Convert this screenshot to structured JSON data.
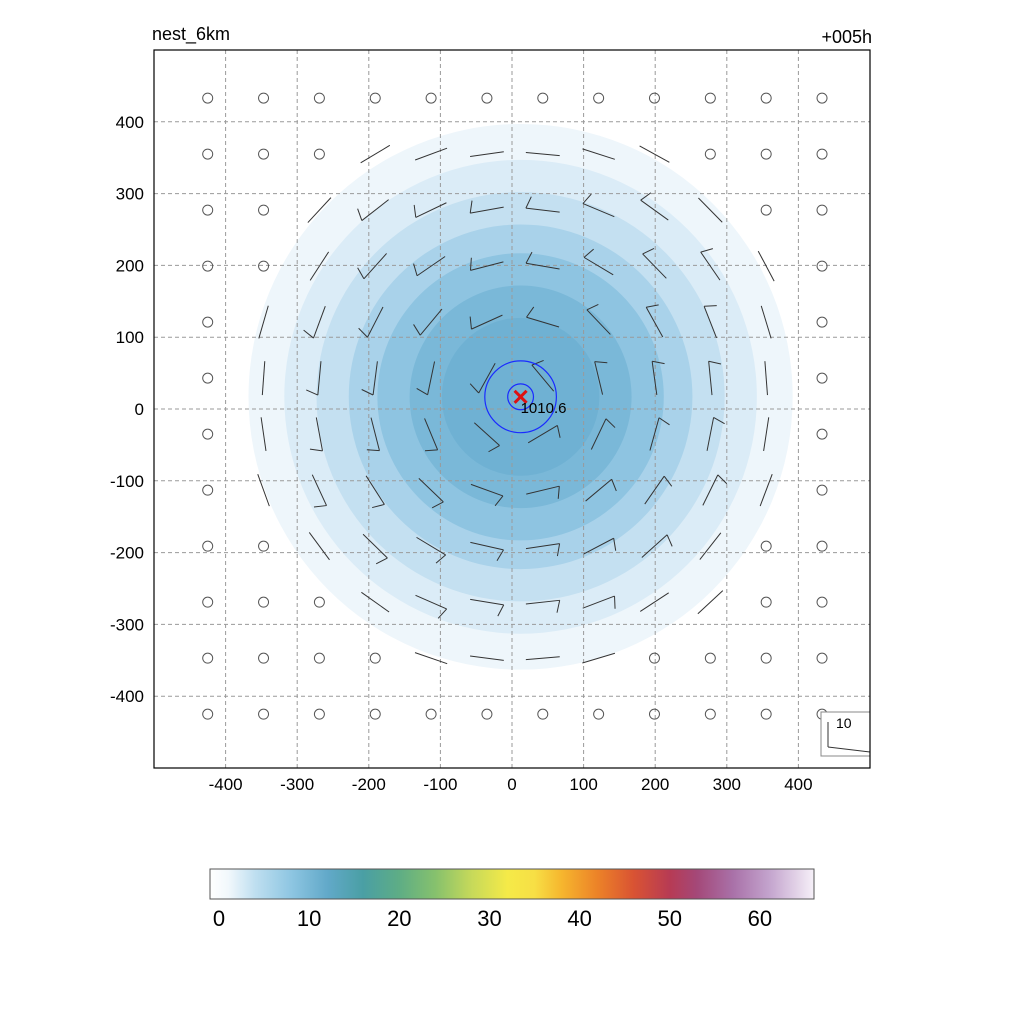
{
  "chart_data": {
    "type": "heatmap",
    "title_left": "nest_6km",
    "title_right": "+005h",
    "xlim": [
      -500,
      500
    ],
    "ylim": [
      -500,
      500
    ],
    "x_ticks": [
      -400,
      -300,
      -200,
      -100,
      0,
      100,
      200,
      300,
      400
    ],
    "y_ticks": [
      400,
      300,
      200,
      100,
      0,
      -100,
      -200,
      -300,
      -400
    ],
    "grid": true,
    "storm_center": {
      "x": 12,
      "y": 17,
      "marker": "x",
      "color": "#dd1111"
    },
    "center_label": "1010.6",
    "pressure_contours": [
      {
        "radius_km": 50,
        "color": "#1a2bff"
      },
      {
        "radius_km": 18,
        "color": "#1a2bff"
      }
    ],
    "field_rings": [
      {
        "radius_km": 380,
        "value": 2,
        "color": "#eef6fb"
      },
      {
        "radius_km": 330,
        "value": 4,
        "color": "#dbecf7"
      },
      {
        "radius_km": 285,
        "value": 6,
        "color": "#c4e0f1"
      },
      {
        "radius_km": 240,
        "value": 8,
        "color": "#a9d2ea"
      },
      {
        "radius_km": 200,
        "value": 10,
        "color": "#8ec4e1"
      },
      {
        "radius_km": 155,
        "value": 12,
        "color": "#7ab8d8"
      },
      {
        "radius_km": 110,
        "value": 13,
        "color": "#6fb1d3"
      }
    ],
    "wind_vectors": "rings of short barbs circulating cyclonically around the center; calm circles in outer domain",
    "vector_key_label": "10",
    "colorbar": {
      "ticks": [
        "0",
        "10",
        "20",
        "30",
        "40",
        "50",
        "60"
      ],
      "min": -1,
      "max": 66,
      "stops": [
        {
          "value": -1,
          "color": "#ffffff"
        },
        {
          "value": 1,
          "color": "#f2f8fc"
        },
        {
          "value": 4,
          "color": "#bfdff0"
        },
        {
          "value": 8,
          "color": "#8ec6e2"
        },
        {
          "value": 12,
          "color": "#62a9c9"
        },
        {
          "value": 16,
          "color": "#4a9fa4"
        },
        {
          "value": 20,
          "color": "#5ead85"
        },
        {
          "value": 24,
          "color": "#86c16d"
        },
        {
          "value": 28,
          "color": "#c6d95a"
        },
        {
          "value": 32,
          "color": "#f5ea48"
        },
        {
          "value": 35,
          "color": "#f7df45"
        },
        {
          "value": 38,
          "color": "#f6b62e"
        },
        {
          "value": 42,
          "color": "#ec8228"
        },
        {
          "value": 46,
          "color": "#d95333"
        },
        {
          "value": 50,
          "color": "#b73b54"
        },
        {
          "value": 53,
          "color": "#a44878"
        },
        {
          "value": 57,
          "color": "#a971a8"
        },
        {
          "value": 61,
          "color": "#c3a3cd"
        },
        {
          "value": 66,
          "color": "#f6f0f8"
        }
      ]
    }
  }
}
